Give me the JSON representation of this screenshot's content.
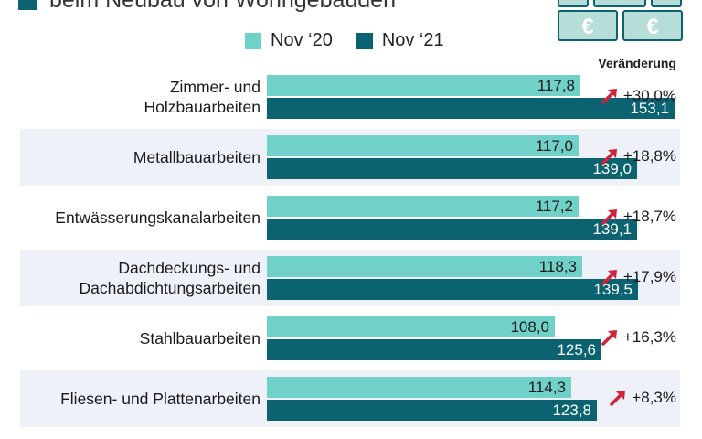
{
  "subtitle": "beim Neubau von Wohngebäuden",
  "icons": {
    "euro_symbol": "€",
    "euro_notes_icon": "euro-banknote-stack",
    "arrow_icon": "up-right-trend-arrow"
  },
  "colors": {
    "nov20": "#6fd1c8",
    "nov21": "#0b6270",
    "arrow": "#d3213a",
    "row_shade": "#eef1f8",
    "euro_note": "#b7ddd8"
  },
  "legend": {
    "items": [
      {
        "label": "Nov ‘20"
      },
      {
        "label": "Nov ‘21"
      }
    ]
  },
  "change_header": "Veränderung",
  "chart_data": {
    "type": "bar",
    "orientation": "horizontal",
    "categories": [
      "Zimmer- und Holzbauarbeiten",
      "Metallbauarbeiten",
      "Entwässerungskanalarbeiten",
      "Dachdeckungs- und Dachabdichtungsarbeiten",
      "Stahlbauarbeiten",
      "Fliesen- und Plattenarbeiten"
    ],
    "category_lines": [
      [
        "Zimmer- und",
        "Holzbauarbeiten"
      ],
      [
        "Metallbauarbeiten"
      ],
      [
        "Entwässerungskanalarbeiten"
      ],
      [
        "Dachdeckungs- und",
        "Dachabdichtungsarbeiten"
      ],
      [
        "Stahlbauarbeiten"
      ],
      [
        "Fliesen- und Plattenarbeiten"
      ]
    ],
    "series": [
      {
        "name": "Nov ‘20",
        "values": [
          117.8,
          117.0,
          117.2,
          118.3,
          108.0,
          114.3
        ],
        "labels": [
          "117,8",
          "117,0",
          "117,2",
          "118,3",
          "108,0",
          "114,3"
        ]
      },
      {
        "name": "Nov ‘21",
        "values": [
          153.1,
          139.0,
          139.1,
          139.5,
          125.6,
          123.8
        ],
        "labels": [
          "153,1",
          "139,0",
          "139,1",
          "139,5",
          "125,6",
          "123,8"
        ]
      }
    ],
    "changes": [
      "+30,0%",
      "+18,8%",
      "+18,7%",
      "+17,9%",
      "+16,3%",
      "+8,3%"
    ],
    "xlim": [
      0,
      153.1
    ],
    "legend_position": "top",
    "grid": false
  }
}
